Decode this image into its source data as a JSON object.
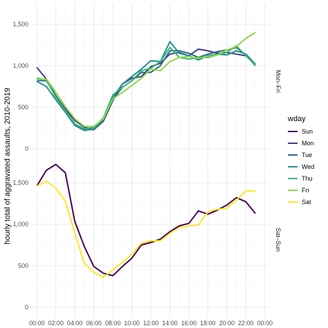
{
  "chart_data": {
    "type": "line",
    "ylabel": "hourly total of aggravated assaults, 2010-2019",
    "xlabel": "",
    "x_tick_labels": [
      "00:00",
      "02:00",
      "04:00",
      "06:00",
      "08:00",
      "10:00",
      "12:00",
      "14:00",
      "16:00",
      "18:00",
      "20:00",
      "22:00",
      "00:00"
    ],
    "y_tick_labels": [
      "0",
      "500",
      "1,000",
      "1,500"
    ],
    "ylim": [
      0,
      1750
    ],
    "x": [
      0,
      1,
      2,
      3,
      4,
      5,
      6,
      7,
      8,
      9,
      10,
      11,
      12,
      13,
      14,
      15,
      16,
      17,
      18,
      19,
      20,
      21,
      22,
      23
    ],
    "legend": {
      "title": "wday",
      "entries": [
        {
          "label": "Sun",
          "color": "#440154"
        },
        {
          "label": "Mon",
          "color": "#443a83"
        },
        {
          "label": "Tue",
          "color": "#31688e"
        },
        {
          "label": "Wed",
          "color": "#21908d"
        },
        {
          "label": "Thu",
          "color": "#35b779"
        },
        {
          "label": "Fri",
          "color": "#8fd744"
        },
        {
          "label": "Sat",
          "color": "#fde725"
        }
      ]
    },
    "panels": [
      {
        "strip": "Mon–Fri",
        "series": [
          {
            "name": "Mon",
            "color": "#443a83",
            "values": [
              980,
              840,
              640,
              480,
              340,
              260,
              230,
              330,
              580,
              780,
              850,
              870,
              990,
              1030,
              1140,
              1160,
              1120,
              1200,
              1180,
              1150,
              1160,
              1140,
              1120,
              1020
            ]
          },
          {
            "name": "Tue",
            "color": "#31688e",
            "values": [
              820,
              820,
              640,
              460,
              300,
              230,
              230,
              340,
              590,
              740,
              820,
              920,
              920,
              1000,
              1180,
              1180,
              1150,
              1100,
              1140,
              1170,
              1190,
              1220,
              1130,
              1000
            ]
          },
          {
            "name": "Wed",
            "color": "#21908d",
            "values": [
              810,
              750,
              590,
              440,
              280,
              220,
              240,
              350,
              620,
              780,
              870,
              960,
              1060,
              1050,
              1290,
              1150,
              1120,
              1070,
              1120,
              1140,
              1130,
              1180,
              1140,
              1020
            ]
          },
          {
            "name": "Thu",
            "color": "#35b779",
            "values": [
              850,
              830,
              620,
              460,
              300,
              240,
              260,
              370,
              650,
              740,
              820,
              940,
              970,
              1050,
              1220,
              1100,
              1080,
              1100,
              1100,
              1130,
              1160,
              1240,
              1120,
              1010
            ]
          },
          {
            "name": "Fri",
            "color": "#8fd744",
            "values": [
              830,
              840,
              680,
              510,
              360,
              270,
              270,
              360,
              600,
              680,
              760,
              850,
              960,
              940,
              1050,
              1100,
              1110,
              1090,
              1110,
              1130,
              1190,
              1230,
              1330,
              1400
            ]
          }
        ]
      },
      {
        "strip": "Sat–Sun",
        "series": [
          {
            "name": "Sun",
            "color": "#440154",
            "values": [
              1460,
              1650,
              1720,
              1620,
              1030,
              730,
              490,
              410,
              380,
              490,
              590,
              750,
              780,
              820,
              910,
              980,
              1010,
              1160,
              1120,
              1170,
              1230,
              1320,
              1270,
              1130
            ]
          },
          {
            "name": "Sat",
            "color": "#fde725",
            "values": [
              1460,
              1520,
              1430,
              1280,
              890,
              530,
              420,
              360,
              450,
              540,
              640,
              770,
              800,
              800,
              890,
              960,
              980,
              990,
              1150,
              1180,
              1190,
              1290,
              1400,
              1400
            ]
          }
        ]
      }
    ]
  }
}
